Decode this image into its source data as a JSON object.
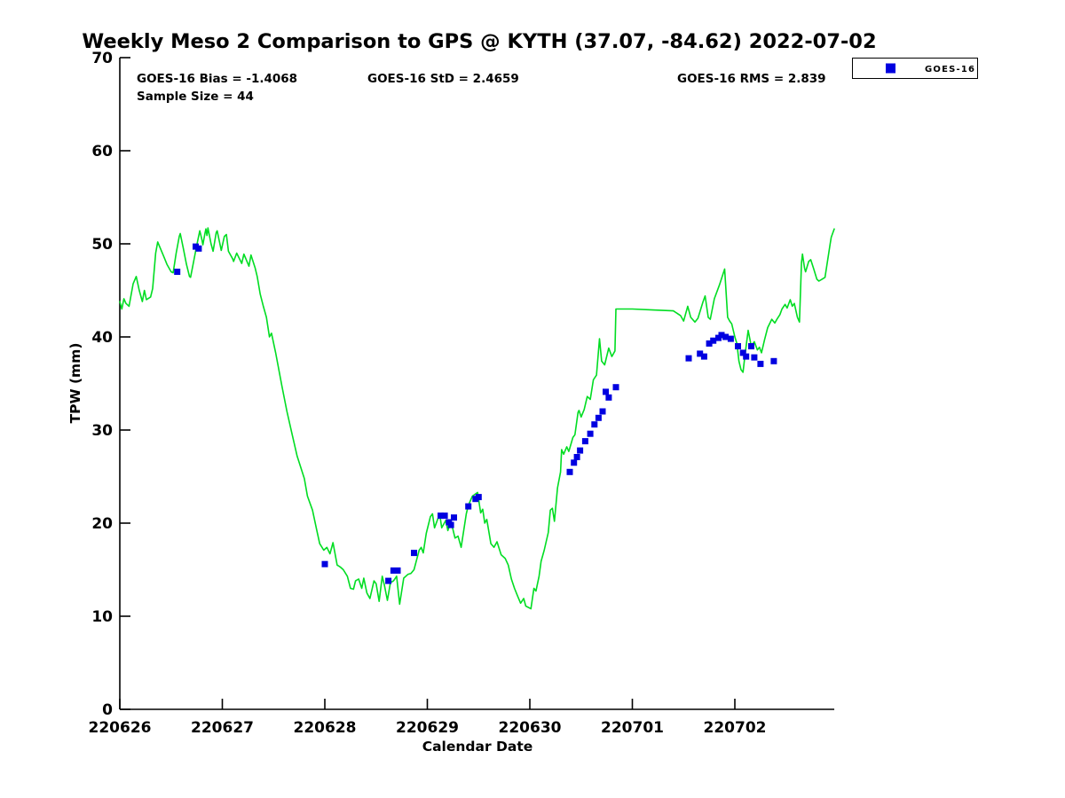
{
  "chart_data": {
    "type": "line",
    "title": "Weekly Meso 2 Comparison to GPS @ KYTH (37.07, -84.62) 2022-07-02",
    "xlabel": "Calendar Date",
    "ylabel": "TPW (mm)",
    "ylim": [
      0,
      70
    ],
    "yticks": [
      0,
      10,
      20,
      30,
      40,
      50,
      60,
      70
    ],
    "xtick_labels": [
      "220626",
      "220627",
      "220628",
      "220629",
      "220630",
      "220701",
      "220702"
    ],
    "xtick_days": [
      0,
      1,
      2,
      3,
      4,
      5,
      6
    ],
    "xlim_days": [
      0,
      6.97
    ],
    "grid": false,
    "annotations": {
      "bias": "GOES-16 Bias = -1.4068",
      "std": "GOES-16 StD = 2.4659",
      "rms": "GOES-16 RMS = 2.839",
      "sample_size": "Sample Size = 44"
    },
    "legend": {
      "position": "top-right",
      "entries": [
        {
          "label": "GOES-16",
          "marker": "filled-square",
          "color": "#0000e0"
        }
      ]
    },
    "colors": {
      "gps_line": "#00dd22",
      "goes16_marker": "#0000e0",
      "axis": "#000000"
    },
    "series": [
      {
        "name": "GPS TPW trace",
        "type": "line",
        "color_key": "gps_line",
        "points": [
          [
            0.0,
            43.8
          ],
          [
            0.02,
            43.0
          ],
          [
            0.04,
            44.1
          ],
          [
            0.06,
            43.6
          ],
          [
            0.09,
            43.3
          ],
          [
            0.13,
            45.7
          ],
          [
            0.16,
            46.5
          ],
          [
            0.19,
            45.0
          ],
          [
            0.22,
            43.8
          ],
          [
            0.24,
            45.0
          ],
          [
            0.26,
            44.0
          ],
          [
            0.3,
            44.3
          ],
          [
            0.32,
            45.2
          ],
          [
            0.35,
            49.0
          ],
          [
            0.37,
            50.2
          ],
          [
            0.43,
            48.6
          ],
          [
            0.46,
            47.8
          ],
          [
            0.5,
            47.0
          ],
          [
            0.52,
            46.9
          ],
          [
            0.55,
            49.0
          ],
          [
            0.58,
            50.8
          ],
          [
            0.59,
            51.1
          ],
          [
            0.62,
            49.5
          ],
          [
            0.65,
            47.8
          ],
          [
            0.68,
            46.5
          ],
          [
            0.69,
            46.4
          ],
          [
            0.72,
            48.1
          ],
          [
            0.75,
            49.8
          ],
          [
            0.78,
            51.4
          ],
          [
            0.8,
            50.5
          ],
          [
            0.81,
            49.9
          ],
          [
            0.83,
            51.1
          ],
          [
            0.84,
            51.6
          ],
          [
            0.85,
            50.9
          ],
          [
            0.86,
            51.7
          ],
          [
            0.89,
            50.0
          ],
          [
            0.91,
            49.2
          ],
          [
            0.94,
            51.2
          ],
          [
            0.95,
            51.4
          ],
          [
            0.98,
            49.8
          ],
          [
            0.99,
            49.3
          ],
          [
            1.02,
            50.8
          ],
          [
            1.04,
            51.0
          ],
          [
            1.06,
            49.2
          ],
          [
            1.1,
            48.4
          ],
          [
            1.11,
            48.1
          ],
          [
            1.14,
            49.0
          ],
          [
            1.19,
            47.9
          ],
          [
            1.21,
            48.9
          ],
          [
            1.26,
            47.6
          ],
          [
            1.28,
            48.8
          ],
          [
            1.32,
            47.4
          ],
          [
            1.34,
            46.5
          ],
          [
            1.37,
            44.6
          ],
          [
            1.4,
            43.3
          ],
          [
            1.43,
            42.1
          ],
          [
            1.46,
            40.0
          ],
          [
            1.48,
            40.4
          ],
          [
            1.52,
            38.3
          ],
          [
            1.58,
            34.8
          ],
          [
            1.63,
            32.0
          ],
          [
            1.68,
            29.6
          ],
          [
            1.73,
            27.2
          ],
          [
            1.8,
            24.8
          ],
          [
            1.83,
            22.9
          ],
          [
            1.88,
            21.4
          ],
          [
            1.92,
            19.3
          ],
          [
            1.95,
            17.8
          ],
          [
            1.99,
            17.1
          ],
          [
            2.02,
            17.4
          ],
          [
            2.05,
            16.7
          ],
          [
            2.08,
            17.9
          ],
          [
            2.12,
            15.5
          ],
          [
            2.15,
            15.3
          ],
          [
            2.18,
            15.0
          ],
          [
            2.22,
            14.3
          ],
          [
            2.25,
            13.0
          ],
          [
            2.28,
            12.9
          ],
          [
            2.3,
            13.8
          ],
          [
            2.33,
            14.0
          ],
          [
            2.36,
            13.0
          ],
          [
            2.38,
            14.1
          ],
          [
            2.41,
            12.5
          ],
          [
            2.44,
            11.9
          ],
          [
            2.48,
            13.8
          ],
          [
            2.5,
            13.5
          ],
          [
            2.53,
            11.6
          ],
          [
            2.56,
            14.3
          ],
          [
            2.58,
            13.4
          ],
          [
            2.61,
            11.7
          ],
          [
            2.64,
            13.6
          ],
          [
            2.67,
            13.8
          ],
          [
            2.7,
            14.3
          ],
          [
            2.73,
            11.3
          ],
          [
            2.77,
            14.1
          ],
          [
            2.81,
            14.5
          ],
          [
            2.84,
            14.6
          ],
          [
            2.87,
            15.0
          ],
          [
            2.92,
            17.1
          ],
          [
            2.94,
            17.4
          ],
          [
            2.96,
            16.8
          ],
          [
            2.99,
            18.9
          ],
          [
            3.03,
            20.7
          ],
          [
            3.05,
            21.0
          ],
          [
            3.07,
            19.5
          ],
          [
            3.12,
            21.0
          ],
          [
            3.14,
            19.5
          ],
          [
            3.18,
            20.3
          ],
          [
            3.2,
            19.2
          ],
          [
            3.23,
            20.2
          ],
          [
            3.27,
            18.4
          ],
          [
            3.3,
            18.6
          ],
          [
            3.33,
            17.4
          ],
          [
            3.38,
            21.0
          ],
          [
            3.4,
            21.9
          ],
          [
            3.44,
            22.9
          ],
          [
            3.49,
            23.3
          ],
          [
            3.52,
            21.1
          ],
          [
            3.54,
            21.5
          ],
          [
            3.56,
            20.0
          ],
          [
            3.58,
            20.4
          ],
          [
            3.62,
            17.8
          ],
          [
            3.65,
            17.4
          ],
          [
            3.68,
            18.0
          ],
          [
            3.72,
            16.6
          ],
          [
            3.76,
            16.2
          ],
          [
            3.79,
            15.5
          ],
          [
            3.82,
            14.0
          ],
          [
            3.85,
            13.0
          ],
          [
            3.88,
            12.2
          ],
          [
            3.91,
            11.4
          ],
          [
            3.94,
            11.9
          ],
          [
            3.96,
            11.1
          ],
          [
            4.01,
            10.8
          ],
          [
            4.04,
            13.0
          ],
          [
            4.06,
            12.7
          ],
          [
            4.09,
            14.3
          ],
          [
            4.11,
            15.9
          ],
          [
            4.14,
            17.1
          ],
          [
            4.18,
            19.0
          ],
          [
            4.2,
            21.4
          ],
          [
            4.22,
            21.6
          ],
          [
            4.24,
            20.2
          ],
          [
            4.27,
            23.8
          ],
          [
            4.3,
            25.5
          ],
          [
            4.31,
            27.9
          ],
          [
            4.33,
            27.4
          ],
          [
            4.36,
            28.2
          ],
          [
            4.38,
            27.7
          ],
          [
            4.42,
            29.2
          ],
          [
            4.44,
            29.5
          ],
          [
            4.47,
            31.9
          ],
          [
            4.48,
            32.1
          ],
          [
            4.5,
            31.4
          ],
          [
            4.53,
            32.2
          ],
          [
            4.56,
            33.6
          ],
          [
            4.59,
            33.3
          ],
          [
            4.62,
            35.4
          ],
          [
            4.65,
            35.9
          ],
          [
            4.68,
            39.8
          ],
          [
            4.7,
            37.4
          ],
          [
            4.73,
            37.0
          ],
          [
            4.77,
            38.8
          ],
          [
            4.8,
            37.9
          ],
          [
            4.83,
            38.5
          ],
          [
            4.84,
            43.0
          ],
          [
            5.0,
            43.0
          ],
          [
            5.2,
            42.9
          ],
          [
            5.4,
            42.8
          ],
          [
            5.47,
            42.3
          ],
          [
            5.5,
            41.7
          ],
          [
            5.54,
            43.3
          ],
          [
            5.57,
            42.1
          ],
          [
            5.61,
            41.6
          ],
          [
            5.64,
            42.0
          ],
          [
            5.69,
            43.8
          ],
          [
            5.71,
            44.4
          ],
          [
            5.74,
            42.1
          ],
          [
            5.76,
            41.9
          ],
          [
            5.8,
            44.1
          ],
          [
            5.85,
            45.6
          ],
          [
            5.9,
            47.3
          ],
          [
            5.93,
            42.1
          ],
          [
            5.95,
            41.7
          ],
          [
            5.97,
            41.4
          ],
          [
            6.0,
            40.0
          ],
          [
            6.02,
            39.3
          ],
          [
            6.04,
            37.4
          ],
          [
            6.06,
            36.5
          ],
          [
            6.08,
            36.2
          ],
          [
            6.1,
            38.1
          ],
          [
            6.13,
            40.7
          ],
          [
            6.16,
            39.0
          ],
          [
            6.19,
            39.5
          ],
          [
            6.22,
            38.6
          ],
          [
            6.24,
            38.9
          ],
          [
            6.26,
            38.3
          ],
          [
            6.29,
            39.7
          ],
          [
            6.32,
            41.0
          ],
          [
            6.36,
            41.9
          ],
          [
            6.39,
            41.5
          ],
          [
            6.41,
            41.9
          ],
          [
            6.44,
            42.4
          ],
          [
            6.46,
            43.0
          ],
          [
            6.49,
            43.5
          ],
          [
            6.51,
            43.1
          ],
          [
            6.54,
            44.0
          ],
          [
            6.56,
            43.3
          ],
          [
            6.58,
            43.6
          ],
          [
            6.61,
            42.1
          ],
          [
            6.63,
            41.6
          ],
          [
            6.65,
            48.0
          ],
          [
            6.66,
            48.9
          ],
          [
            6.68,
            47.4
          ],
          [
            6.69,
            47.0
          ],
          [
            6.72,
            48.1
          ],
          [
            6.74,
            48.3
          ],
          [
            6.77,
            47.3
          ],
          [
            6.8,
            46.2
          ],
          [
            6.82,
            46.0
          ],
          [
            6.85,
            46.2
          ],
          [
            6.88,
            46.4
          ],
          [
            6.93,
            50.0
          ],
          [
            6.94,
            50.7
          ],
          [
            6.97,
            51.6
          ]
        ]
      },
      {
        "name": "GOES-16",
        "type": "scatter",
        "color_key": "goes16_marker",
        "points": [
          [
            0.56,
            47.0
          ],
          [
            0.74,
            49.7
          ],
          [
            0.77,
            49.5
          ],
          [
            2.0,
            15.6
          ],
          [
            2.62,
            13.8
          ],
          [
            2.67,
            14.9
          ],
          [
            2.71,
            14.9
          ],
          [
            2.87,
            16.8
          ],
          [
            3.13,
            20.8
          ],
          [
            3.17,
            20.8
          ],
          [
            3.21,
            20.1
          ],
          [
            3.23,
            19.8
          ],
          [
            3.26,
            20.6
          ],
          [
            3.4,
            21.8
          ],
          [
            3.47,
            22.6
          ],
          [
            3.5,
            22.8
          ],
          [
            4.39,
            25.5
          ],
          [
            4.43,
            26.5
          ],
          [
            4.46,
            27.1
          ],
          [
            4.49,
            27.8
          ],
          [
            4.54,
            28.8
          ],
          [
            4.59,
            29.6
          ],
          [
            4.63,
            30.6
          ],
          [
            4.67,
            31.3
          ],
          [
            4.71,
            32.0
          ],
          [
            4.74,
            34.1
          ],
          [
            4.77,
            33.5
          ],
          [
            4.84,
            34.6
          ],
          [
            5.55,
            37.7
          ],
          [
            5.66,
            38.2
          ],
          [
            5.7,
            37.9
          ],
          [
            5.75,
            39.3
          ],
          [
            5.79,
            39.6
          ],
          [
            5.84,
            39.9
          ],
          [
            5.87,
            40.2
          ],
          [
            5.91,
            40.0
          ],
          [
            5.96,
            39.8
          ],
          [
            6.03,
            39.0
          ],
          [
            6.08,
            38.3
          ],
          [
            6.11,
            37.9
          ],
          [
            6.16,
            39.0
          ],
          [
            6.19,
            37.8
          ],
          [
            6.25,
            37.1
          ],
          [
            6.38,
            37.4
          ]
        ]
      }
    ]
  }
}
